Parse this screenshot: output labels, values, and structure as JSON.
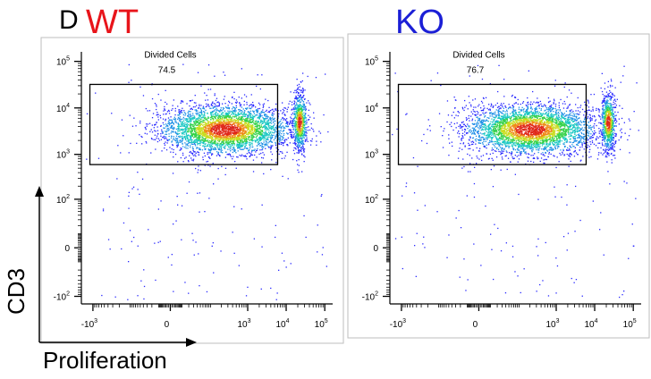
{
  "figure": {
    "panel_letter": "D",
    "xlabel": "Proliferation",
    "ylabel": "CD3",
    "colors": {
      "wt": "#e8141a",
      "ko": "#1b1fd6",
      "axes": "#000000"
    }
  },
  "chart_data": [
    {
      "type": "scatter",
      "title": "WT",
      "x_scale": "biexponential",
      "y_scale": "biexponential",
      "x_ticks": [
        "-10^3",
        "0",
        "10^3",
        "10^4",
        "10^5"
      ],
      "y_ticks": [
        "10^5",
        "10^4",
        "10^3",
        "10^2",
        "0",
        "-10^2"
      ],
      "gate": {
        "label": "Divided Cells",
        "value": "74.5",
        "x_range": [
          -1200,
          6000
        ],
        "y_range": [
          600,
          32000
        ]
      },
      "populations": [
        {
          "name": "divided",
          "x_center": 250,
          "y_center": 3500
        },
        {
          "name": "undivided",
          "x_center": 22000,
          "y_center": 5000
        }
      ]
    },
    {
      "type": "scatter",
      "title": "KO",
      "x_scale": "biexponential",
      "y_scale": "biexponential",
      "x_ticks": [
        "-10^3",
        "0",
        "10^3",
        "10^4",
        "10^5"
      ],
      "y_ticks": [
        "10^5",
        "10^4",
        "10^3",
        "10^2",
        "0",
        "-10^2"
      ],
      "gate": {
        "label": "Divided Cells",
        "value": "76.7",
        "x_range": [
          -1200,
          6000
        ],
        "y_range": [
          600,
          32000
        ]
      },
      "populations": [
        {
          "name": "divided",
          "x_center": 200,
          "y_center": 3500
        },
        {
          "name": "undivided",
          "x_center": 22000,
          "y_center": 5000
        }
      ]
    }
  ]
}
